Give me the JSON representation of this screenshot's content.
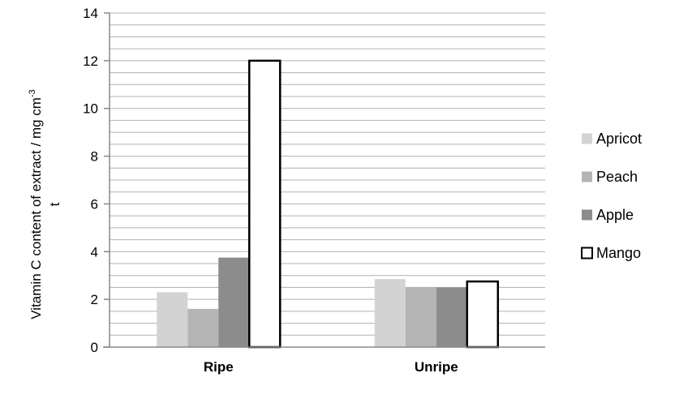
{
  "chart_data": {
    "type": "bar",
    "categories": [
      "Ripe",
      "Unripe"
    ],
    "series": [
      {
        "name": "Apricot",
        "values": [
          2.3,
          2.85
        ],
        "color": "#d3d3d3",
        "outline": false
      },
      {
        "name": "Peach",
        "values": [
          1.6,
          2.5
        ],
        "color": "#b4b4b4",
        "outline": false
      },
      {
        "name": "Apple",
        "values": [
          3.75,
          2.5
        ],
        "color": "#8c8c8c",
        "outline": false
      },
      {
        "name": "Mango",
        "values": [
          12.0,
          2.75
        ],
        "color": "#ffffff",
        "outline": true
      }
    ],
    "ylabel": "Vitamin C content of extract /  mg cm",
    "ylabel_superscript": "-3",
    "ylabel_line2": "t",
    "ylim": [
      0,
      14
    ],
    "yticks": [
      "0",
      "2",
      "4",
      "6",
      "8",
      "10",
      "12",
      "14"
    ],
    "minor_grid_step": 0.5,
    "grid": true,
    "legend_position": "right"
  }
}
